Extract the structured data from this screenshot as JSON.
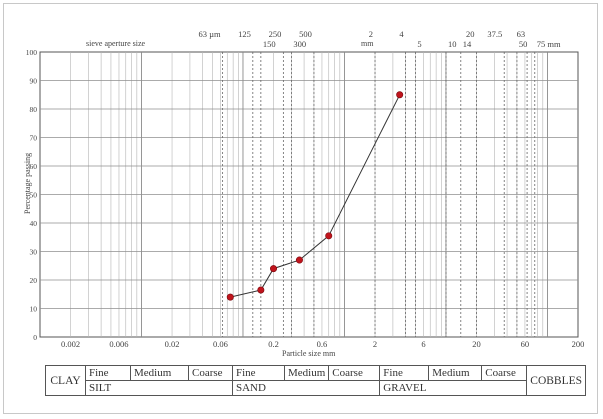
{
  "chart_data": {
    "type": "line",
    "xscale": "log",
    "xlim": [
      0.001,
      200
    ],
    "ylim": [
      0,
      100
    ],
    "xlabel": "Particle size mm",
    "ylabel": "Percentage passing",
    "top_axis_label": "sieve aperture size",
    "top_axis_unit": "mm",
    "x_tick_labels": [
      {
        "value": 0.002,
        "label": "0.002"
      },
      {
        "value": 0.006,
        "label": "0.006"
      },
      {
        "value": 0.02,
        "label": "0.02"
      },
      {
        "value": 0.06,
        "label": "0.06"
      },
      {
        "value": 0.2,
        "label": "0.2"
      },
      {
        "value": 0.6,
        "label": "0.6"
      },
      {
        "value": 2,
        "label": "2"
      },
      {
        "value": 6,
        "label": "6"
      },
      {
        "value": 20,
        "label": "20"
      },
      {
        "value": 60,
        "label": "60"
      },
      {
        "value": 200,
        "label": "200"
      }
    ],
    "y_ticks": [
      0,
      10,
      20,
      30,
      40,
      50,
      60,
      70,
      80,
      90,
      100
    ],
    "sieve_labels_upper": [
      {
        "value": 0.063,
        "label": "63 µm"
      },
      {
        "value": 0.125,
        "label": "125"
      },
      {
        "value": 0.25,
        "label": "250"
      },
      {
        "value": 0.5,
        "label": "500"
      },
      {
        "value": 2,
        "label": "2"
      },
      {
        "value": 4,
        "label": "4"
      },
      {
        "value": 20,
        "label": "20"
      },
      {
        "value": 37.5,
        "label": "37.5"
      },
      {
        "value": 63,
        "label": "63"
      }
    ],
    "sieve_labels_lower": [
      {
        "value": 0.15,
        "label": "150"
      },
      {
        "value": 0.3,
        "label": "300"
      },
      {
        "value": 5,
        "label": "5"
      },
      {
        "value": 10,
        "label": "10"
      },
      {
        "value": 14,
        "label": "14"
      },
      {
        "value": 50,
        "label": "50"
      },
      {
        "value": 75,
        "label": "75 mm"
      }
    ],
    "series": [
      {
        "color": "#c0141c",
        "points": [
          {
            "x": 0.075,
            "y": 14
          },
          {
            "x": 0.15,
            "y": 16.5
          },
          {
            "x": 0.2,
            "y": 24
          },
          {
            "x": 0.36,
            "y": 27
          },
          {
            "x": 0.7,
            "y": 35.5
          },
          {
            "x": 3.5,
            "y": 85
          }
        ]
      }
    ]
  },
  "classification": {
    "clay": "CLAY",
    "silt": {
      "fine": "Fine",
      "medium": "Medium",
      "coarse": "Coarse",
      "name": "SILT"
    },
    "sand": {
      "fine": "Fine",
      "medium": "Medium",
      "coarse": "Coarse",
      "name": "SAND"
    },
    "gravel": {
      "fine": "Fine",
      "medium": "Medium",
      "coarse": "Coarse",
      "name": "GRAVEL"
    },
    "cobbles": "COBBLES"
  }
}
